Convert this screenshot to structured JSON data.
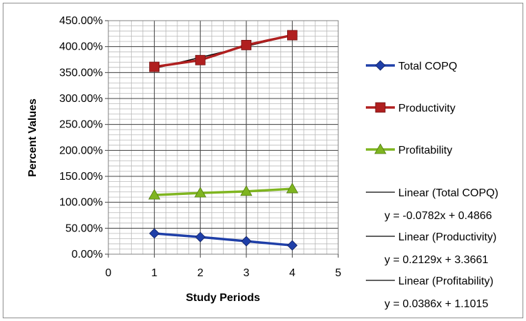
{
  "chart_data": {
    "type": "line",
    "xlabel": "Study Periods",
    "ylabel": "Percent Values",
    "xlim": [
      0,
      5
    ],
    "ylim": [
      0,
      4.5
    ],
    "x_ticks": [
      "0",
      "1",
      "2",
      "3",
      "4",
      "5"
    ],
    "y_ticks": [
      "0.00%",
      "50.00%",
      "100.00%",
      "150.00%",
      "200.00%",
      "250.00%",
      "300.00%",
      "350.00%",
      "400.00%",
      "450.00%"
    ],
    "grid": true,
    "legend_position": "right",
    "x": [
      1,
      2,
      3,
      4
    ],
    "series": [
      {
        "name": "Total COPQ",
        "values": [
          0.4,
          0.33,
          0.25,
          0.17
        ],
        "color": "#1f3fa8",
        "marker": "diamond"
      },
      {
        "name": "Productivity",
        "values": [
          3.61,
          3.74,
          4.03,
          4.22
        ],
        "color": "#b01f1f",
        "marker": "square"
      },
      {
        "name": "Profitability",
        "values": [
          1.14,
          1.18,
          1.21,
          1.26
        ],
        "color": "#7fb520",
        "marker": "triangle"
      }
    ],
    "trendlines": [
      {
        "name": "Linear (Total COPQ)",
        "equation": "y = -0.0782x + 0.4866",
        "slope": -0.0782,
        "intercept": 0.4866
      },
      {
        "name": "Linear (Productivity)",
        "equation": "y = 0.2129x + 3.3661",
        "slope": 0.2129,
        "intercept": 3.3661
      },
      {
        "name": "Linear (Profitability)",
        "equation": "y = 0.0386x + 1.1015",
        "slope": 0.0386,
        "intercept": 1.1015
      }
    ]
  }
}
